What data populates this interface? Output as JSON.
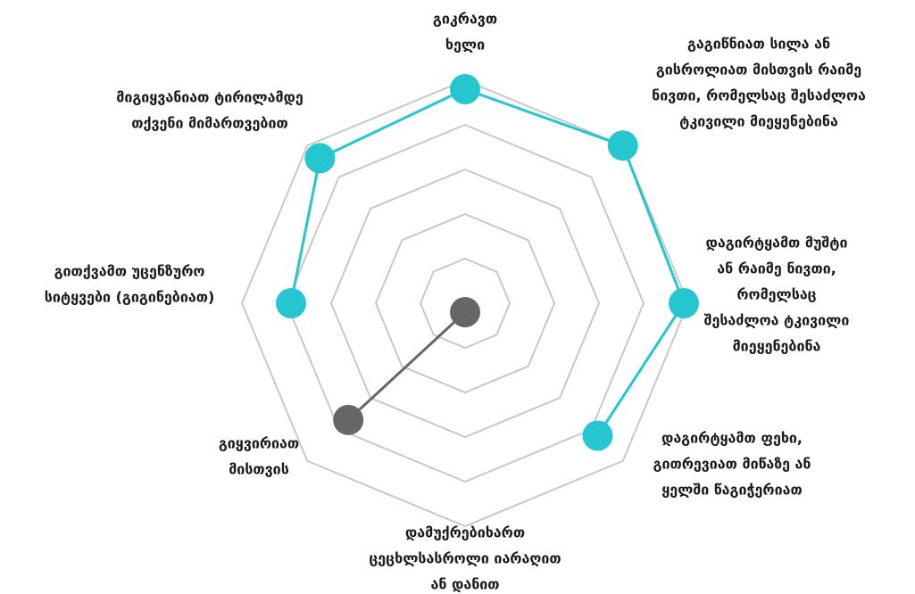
{
  "chart_data": {
    "type": "radar",
    "categories": [
      [
        "გიკრავთ",
        "ხელი"
      ],
      [
        "გაგიწნიათ სილა ან",
        "გისროლიათ მისთვის რაიმე",
        "ნივთი, რომელსაც შესაძლოა",
        "ტკივილი მიეყენებინა"
      ],
      [
        "დაგირტყამთ მუშტი",
        "ან რაიმე ნივთი,",
        "რომელსაც",
        "შესაძლოა ტკივილი",
        "მიეყენებინა"
      ],
      [
        "დაგირტყამთ ფეხი,",
        "გითრევიათ მიწაზე ან",
        "ყელში წაგიჭერიათ"
      ],
      [
        "დამუქრებიხართ",
        "ცეცხლსასროლი იარაღით",
        "ან დანით"
      ],
      [
        "გიყვირიათ",
        "მისთვის"
      ],
      [
        "გითქვამთ უცენზურო",
        "სიტყვები (გიგინებიათ)"
      ],
      [
        "მიგიყვანიათ ტირილამდე",
        "თქვენი მიმართვებით"
      ]
    ],
    "values": [
      4.8,
      5.0,
      4.9,
      4.2,
      0.2,
      3.7,
      3.9,
      4.6
    ],
    "point_colors": [
      "#26c6d0",
      "#26c6d0",
      "#26c6d0",
      "#26c6d0",
      "#666666",
      "#666666",
      "#26c6d0",
      "#26c6d0"
    ],
    "rlim": [
      0,
      5
    ],
    "rticks": [
      1,
      2,
      3,
      4,
      5
    ],
    "grid": true
  }
}
